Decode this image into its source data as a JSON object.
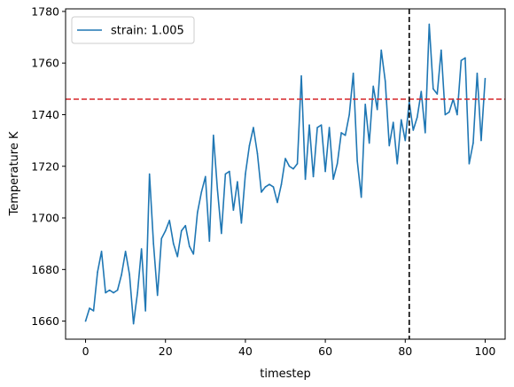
{
  "chart_data": {
    "type": "line",
    "title": "",
    "xlabel": "timestep",
    "ylabel": "Temperature K",
    "xlim": [
      -5,
      105
    ],
    "ylim": [
      1653,
      1781
    ],
    "x_ticks": [
      0,
      20,
      40,
      60,
      80,
      100
    ],
    "y_ticks": [
      1660,
      1680,
      1700,
      1720,
      1740,
      1760,
      1780
    ],
    "grid": false,
    "legend_position": "top-left",
    "series": [
      {
        "name": "strain: 1.005",
        "color": "#1f77b4",
        "x": [
          0,
          1,
          2,
          3,
          4,
          5,
          6,
          7,
          8,
          9,
          10,
          11,
          12,
          13,
          14,
          15,
          16,
          17,
          18,
          19,
          20,
          21,
          22,
          23,
          24,
          25,
          26,
          27,
          28,
          29,
          30,
          31,
          32,
          33,
          34,
          35,
          36,
          37,
          38,
          39,
          40,
          41,
          42,
          43,
          44,
          45,
          46,
          47,
          48,
          49,
          50,
          51,
          52,
          53,
          54,
          55,
          56,
          57,
          58,
          59,
          60,
          61,
          62,
          63,
          64,
          65,
          66,
          67,
          68,
          69,
          70,
          71,
          72,
          73,
          74,
          75,
          76,
          77,
          78,
          79,
          80,
          81,
          82,
          83,
          84,
          85,
          86,
          87,
          88,
          89,
          90,
          91,
          92,
          93,
          94,
          95,
          96,
          97,
          98,
          99,
          100
        ],
        "values": [
          1660,
          1665,
          1664,
          1679,
          1687,
          1671,
          1672,
          1671,
          1672,
          1678,
          1687,
          1678,
          1659,
          1671,
          1688,
          1664,
          1717,
          1690,
          1670,
          1692,
          1695,
          1699,
          1690,
          1685,
          1695,
          1697,
          1689,
          1686,
          1702,
          1710,
          1716,
          1691,
          1732,
          1711,
          1694,
          1717,
          1718,
          1703,
          1714,
          1698,
          1717,
          1728,
          1735,
          1725,
          1710,
          1712,
          1713,
          1712,
          1706,
          1713,
          1723,
          1720,
          1719,
          1721,
          1755,
          1715,
          1736,
          1716,
          1735,
          1736,
          1718,
          1735,
          1715,
          1721,
          1733,
          1732,
          1740,
          1756,
          1722,
          1708,
          1744,
          1729,
          1751,
          1742,
          1765,
          1753,
          1728,
          1737,
          1721,
          1738,
          1730,
          1745,
          1734,
          1739,
          1749,
          1733,
          1775,
          1750,
          1748,
          1765,
          1740,
          1741,
          1746,
          1740,
          1761,
          1762,
          1721,
          1729,
          1756,
          1730,
          1754
        ]
      }
    ],
    "reference_lines": [
      {
        "orientation": "horizontal",
        "value": 1746,
        "color": "#d62728",
        "style": "dashed"
      },
      {
        "orientation": "vertical",
        "value": 81,
        "color": "#000000",
        "style": "dashed"
      }
    ]
  }
}
